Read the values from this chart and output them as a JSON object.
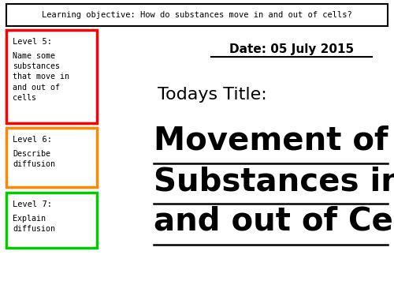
{
  "background_color": "#ffffff",
  "learning_objective": "Learning objective: How do substances move in and out of cells?",
  "date_text": "Date: 05 July 2015",
  "todays_title": "Todays Title:",
  "main_title_line1": "Movement of",
  "main_title_line2": "Substances in",
  "main_title_line3": "and out of Cells",
  "level5_header": "Level 5:",
  "level5_body": "Name some\nsubstances\nthat move in\nand out of\ncells",
  "level5_color": "#ff0000",
  "level6_header": "Level 6:",
  "level6_body": "Describe\ndiffusion",
  "level6_color": "#ff8800",
  "level7_header": "Level 7:",
  "level7_body": "Explain\ndiffusion",
  "level7_color": "#00cc00"
}
